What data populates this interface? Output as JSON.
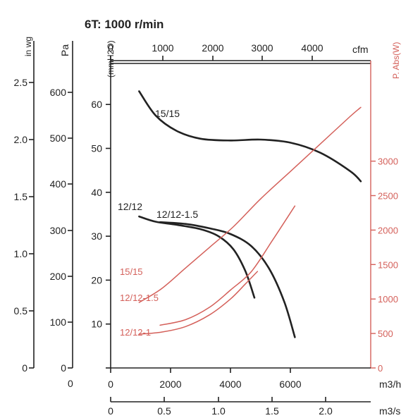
{
  "chart_data": {
    "type": "line",
    "title": "6T: 1000 r/min",
    "axes": {
      "pressure_mmh2o": {
        "label": "(mmH2O)",
        "range": [
          0,
          70
        ],
        "ticks": [
          10,
          20,
          30,
          40,
          50,
          60
        ]
      },
      "pressure_pa": {
        "label": "Pa",
        "ticks": [
          0,
          100,
          200,
          300,
          400,
          500,
          600
        ]
      },
      "pressure_inwg": {
        "label": "in wg",
        "ticks": [
          "0",
          "0.5",
          "1.0",
          "1.5",
          "2.0",
          "2.5"
        ]
      },
      "power_w": {
        "label": "P. Abs(W)",
        "range": [
          0,
          3500
        ],
        "ticks": [
          0,
          500,
          1000,
          1500,
          2000,
          2500,
          3000
        ],
        "color": "#d4605a"
      },
      "flow_m3h": {
        "label": "m3/h",
        "range": [
          0,
          8700
        ],
        "ticks": [
          0,
          2000,
          4000,
          6000
        ]
      },
      "flow_cfm": {
        "label": "cfm",
        "ticks": [
          0,
          1000,
          2000,
          3000,
          4000
        ]
      },
      "flow_m3s": {
        "label": "m3/s",
        "ticks": [
          "0",
          "0.5",
          "1.0",
          "1.5",
          "2.0"
        ]
      },
      "x0_label": "0"
    },
    "pressure_series": [
      {
        "name": "15/15",
        "color": "#222222",
        "points": [
          [
            950,
            63
          ],
          [
            1500,
            57.5
          ],
          [
            2200,
            54
          ],
          [
            3000,
            52.2
          ],
          [
            4000,
            51.8
          ],
          [
            5000,
            52
          ],
          [
            6000,
            51.3
          ],
          [
            7000,
            49
          ],
          [
            8000,
            44.8
          ],
          [
            8350,
            42.5
          ]
        ]
      },
      {
        "name": "12/12",
        "color": "#222222",
        "points": [
          [
            950,
            34.5
          ],
          [
            1500,
            33.3
          ],
          [
            2200,
            32.6
          ],
          [
            3000,
            31.6
          ],
          [
            3600,
            30
          ],
          [
            4100,
            27
          ],
          [
            4500,
            22
          ],
          [
            4800,
            16
          ]
        ]
      },
      {
        "name": "12/12-1.5",
        "color": "#222222",
        "points": [
          [
            1650,
            33.2
          ],
          [
            2500,
            32.8
          ],
          [
            3300,
            31.8
          ],
          [
            4000,
            30.5
          ],
          [
            4700,
            27.7
          ],
          [
            5300,
            22.5
          ],
          [
            5800,
            15
          ],
          [
            6150,
            7
          ]
        ]
      }
    ],
    "power_series": [
      {
        "name": "15/15",
        "color": "#d4605a",
        "points": [
          [
            950,
            950
          ],
          [
            1700,
            1150
          ],
          [
            2500,
            1450
          ],
          [
            3300,
            1750
          ],
          [
            4100,
            2050
          ],
          [
            5000,
            2450
          ],
          [
            6000,
            2850
          ],
          [
            7000,
            3250
          ],
          [
            8000,
            3650
          ],
          [
            8350,
            3780
          ]
        ]
      },
      {
        "name": "12/12-1.5",
        "color": "#d4605a",
        "points": [
          [
            1650,
            620
          ],
          [
            2500,
            700
          ],
          [
            3300,
            880
          ],
          [
            4000,
            1130
          ],
          [
            4700,
            1400
          ],
          [
            5400,
            1850
          ],
          [
            6150,
            2350
          ]
        ]
      },
      {
        "name": "12/12-1",
        "color": "#d4605a",
        "points": [
          [
            950,
            490
          ],
          [
            1700,
            520
          ],
          [
            2500,
            600
          ],
          [
            3300,
            770
          ],
          [
            4000,
            1000
          ],
          [
            4500,
            1220
          ],
          [
            4900,
            1400
          ]
        ]
      }
    ],
    "labels": [
      "15/15",
      "12/12",
      "12/12-1.5",
      "15/15",
      "12/12-1.5",
      "12/12-1"
    ]
  }
}
